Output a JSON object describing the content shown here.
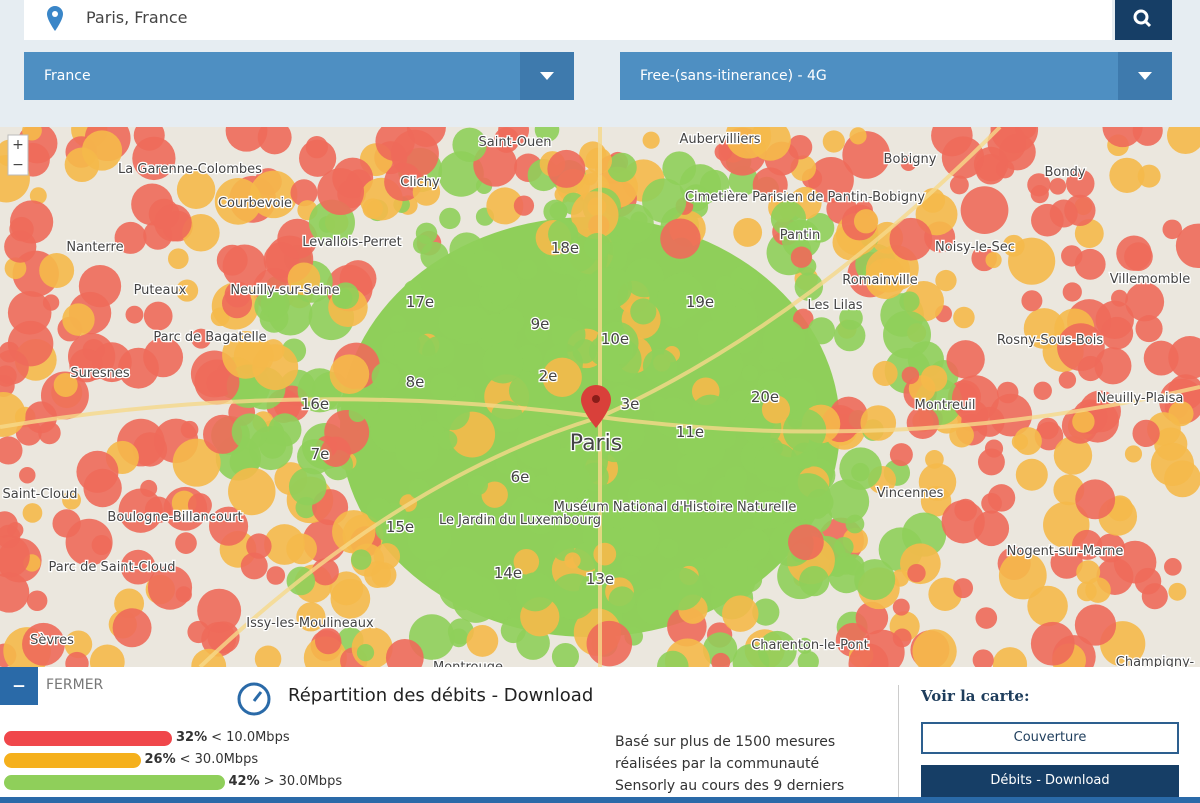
{
  "search": {
    "query": "Paris, France"
  },
  "filters": {
    "country": "France",
    "network": "Free-(sans-itinerance) - 4G"
  },
  "map": {
    "labels": [
      "Saint-Ouen",
      "Aubervilliers",
      "Bobigny",
      "Bondy",
      "La Garenne-Colombes",
      "Courbevoie",
      "Clichy",
      "Nanterre",
      "Levallois-Perret",
      "Cimetière Parisien de Pantin-Bobigny",
      "Pantin",
      "Noisy-le-Sec",
      "Villemomble",
      "Puteaux",
      "Neuilly-sur-Seine",
      "Romainville",
      "Les Lilas",
      "Rosny-Sous-Bois",
      "Parc de Bagatelle",
      "Suresnes",
      "18e",
      "17e",
      "19e",
      "10e",
      "9e",
      "8e",
      "20e",
      "2e",
      "3e",
      "16e",
      "11e",
      "Paris",
      "Montreuil",
      "Neuilly-Plaisa",
      "Saint-Cloud",
      "Boulogne-Billancourt",
      "7e",
      "6e",
      "15e",
      "Vincennes",
      "Le Jardin du Luxembourg",
      "Muséum National d'Histoire Naturelle",
      "Parc de Saint-Cloud",
      "14e",
      "13e",
      "Nogent-sur-Marne",
      "Issy-les-Moulineaux",
      "Sèvres",
      "Montrouge",
      "Charenton-le-Pont",
      "Champigny-"
    ],
    "zoom_in": "+",
    "zoom_out": "−"
  },
  "panel": {
    "close": "FERMER",
    "title": "Répartition des débits - Download",
    "distribution": [
      {
        "value": 32,
        "label": "32%",
        "range": "< 10.0Mbps",
        "color": "#f0474b"
      },
      {
        "value": 26,
        "label": "26%",
        "range": "< 30.0Mbps",
        "color": "#f5b01c"
      },
      {
        "value": 42,
        "label": "42%",
        "range": "> 30.0Mbps",
        "color": "#8fcf5a"
      }
    ],
    "note": [
      "Basé sur plus de 1500 mesures",
      "réalisées par la communauté",
      "Sensorly au cours des 9 derniers"
    ],
    "view_title": "Voir la carte:",
    "buttons": [
      "Couverture",
      "Débits - Download"
    ]
  }
}
